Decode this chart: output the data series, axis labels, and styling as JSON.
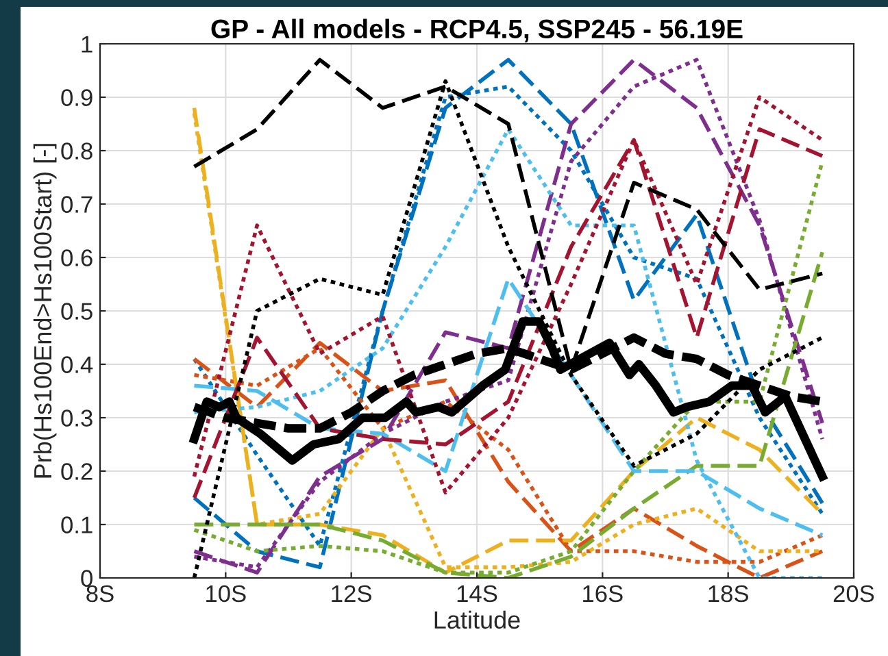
{
  "chart_data": {
    "type": "line",
    "title": "GP - All models - RCP4.5, SSP245 - 56.19E",
    "xlabel": "Latitude",
    "ylabel": "Prb(Hs100End>Hs100Start) [-]",
    "x": [
      9.5,
      10.5,
      11.5,
      12.5,
      13.5,
      14.5,
      15.5,
      16.5,
      17.5,
      18.5,
      19.5
    ],
    "xlim": [
      8,
      20
    ],
    "xticks": [
      {
        "value": 8,
        "label": "8S"
      },
      {
        "value": 10,
        "label": "10S"
      },
      {
        "value": 12,
        "label": "12S"
      },
      {
        "value": 14,
        "label": "14S"
      },
      {
        "value": 16,
        "label": "16S"
      },
      {
        "value": 18,
        "label": "18S"
      },
      {
        "value": 20,
        "label": "20S"
      }
    ],
    "ylim": [
      0,
      1
    ],
    "yticks": [
      0,
      0.1,
      0.2,
      0.3,
      0.4,
      0.5,
      0.6,
      0.7,
      0.8,
      0.9,
      1
    ],
    "grid": true,
    "legend": false,
    "marker": "none",
    "series": [
      {
        "color": "#0072bd",
        "line_style": "dashed",
        "values": [
          0.15,
          0.05,
          0.02,
          0.5,
          0.88,
          0.97,
          0.85,
          0.52,
          0.68,
          0.33,
          0.14
        ]
      },
      {
        "color": "#0072bd",
        "line_style": "dotted",
        "values": [
          0.41,
          0.23,
          0.06,
          0.5,
          0.9,
          0.92,
          0.8,
          0.6,
          0.56,
          0.3,
          0.12
        ]
      },
      {
        "color": "#d95319",
        "line_style": "dashed",
        "values": [
          0.41,
          0.32,
          0.44,
          0.35,
          0.37,
          0.18,
          0.05,
          0.13,
          0.06,
          0.0,
          0.05
        ]
      },
      {
        "color": "#d95319",
        "line_style": "dotted",
        "values": [
          0.38,
          0.36,
          0.43,
          0.28,
          0.33,
          0.24,
          0.05,
          0.05,
          0.03,
          0.03,
          0.08
        ]
      },
      {
        "color": "#edb120",
        "line_style": "dashed",
        "values": [
          0.88,
          0.1,
          0.1,
          0.08,
          0.01,
          0.07,
          0.07,
          0.2,
          0.3,
          0.24,
          0.12
        ]
      },
      {
        "color": "#edb120",
        "line_style": "dotted",
        "values": [
          0.87,
          0.1,
          0.12,
          0.28,
          0.02,
          0.02,
          0.03,
          0.1,
          0.13,
          0.05,
          0.05
        ]
      },
      {
        "color": "#7e2f8e",
        "line_style": "dashed",
        "values": [
          0.05,
          0.01,
          0.19,
          0.26,
          0.46,
          0.43,
          0.85,
          0.97,
          0.88,
          0.66,
          0.29
        ]
      },
      {
        "color": "#7e2f8e",
        "line_style": "dotted",
        "values": [
          0.04,
          0.02,
          0.18,
          0.27,
          0.33,
          0.37,
          0.78,
          0.92,
          0.97,
          0.67,
          0.26
        ]
      },
      {
        "color": "#77ac30",
        "line_style": "dashed",
        "values": [
          0.1,
          0.1,
          0.1,
          0.07,
          0.01,
          0.0,
          0.04,
          0.13,
          0.21,
          0.21,
          0.61
        ]
      },
      {
        "color": "#77ac30",
        "line_style": "dotted",
        "values": [
          0.09,
          0.05,
          0.06,
          0.05,
          0.01,
          0.01,
          0.05,
          0.2,
          0.33,
          0.33,
          0.78
        ]
      },
      {
        "color": "#4dbeee",
        "line_style": "dashed",
        "values": [
          0.36,
          0.35,
          0.28,
          0.27,
          0.2,
          0.56,
          0.38,
          0.2,
          0.2,
          0.13,
          0.08
        ]
      },
      {
        "color": "#4dbeee",
        "line_style": "dotted",
        "values": [
          0.31,
          0.32,
          0.35,
          0.43,
          0.62,
          0.84,
          0.66,
          0.66,
          0.22,
          0.0,
          0.0
        ]
      },
      {
        "color": "#a2142f",
        "line_style": "dashed",
        "values": [
          0.15,
          0.45,
          0.28,
          0.26,
          0.25,
          0.33,
          0.62,
          0.82,
          0.45,
          0.84,
          0.79
        ]
      },
      {
        "color": "#a2142f",
        "line_style": "dotted",
        "values": [
          0.19,
          0.66,
          0.42,
          0.49,
          0.16,
          0.3,
          0.55,
          0.82,
          0.55,
          0.9,
          0.82
        ]
      },
      {
        "color": "#000000",
        "line_style": "dashed",
        "values": [
          0.77,
          0.84,
          0.97,
          0.88,
          0.92,
          0.85,
          0.39,
          0.74,
          0.69,
          0.54,
          0.57
        ]
      },
      {
        "color": "#000000",
        "line_style": "dotted",
        "values": [
          0.0,
          0.5,
          0.56,
          0.53,
          0.93,
          0.62,
          0.38,
          0.21,
          0.27,
          0.39,
          0.45
        ]
      },
      {
        "color": "#000000",
        "line_style": "solid",
        "x": [
          9.5,
          9.7,
          9.9,
          10.06,
          10.17,
          10.55,
          11.06,
          11.4,
          11.8,
          12.18,
          12.54,
          12.88,
          13.03,
          13.39,
          13.6,
          14.09,
          14.45,
          14.73,
          14.99,
          15.2,
          15.33,
          15.64,
          16.11,
          16.43,
          16.58,
          16.85,
          17.13,
          17.34,
          17.7,
          18.06,
          18.38,
          18.59,
          18.91,
          19.5
        ],
        "values": [
          0.26,
          0.33,
          0.32,
          0.33,
          0.3,
          0.27,
          0.22,
          0.25,
          0.26,
          0.3,
          0.3,
          0.33,
          0.31,
          0.32,
          0.31,
          0.36,
          0.39,
          0.48,
          0.48,
          0.43,
          0.39,
          0.41,
          0.44,
          0.38,
          0.4,
          0.36,
          0.31,
          0.32,
          0.33,
          0.36,
          0.36,
          0.31,
          0.34,
          0.19
        ]
      },
      {
        "color": "#000000",
        "line_style": "dashed",
        "x": [
          9.5,
          10.0,
          10.5,
          11.0,
          11.5,
          12.0,
          12.5,
          13.0,
          13.5,
          14.0,
          14.5,
          15.0,
          15.5,
          16.0,
          16.5,
          17.0,
          17.5,
          18.0,
          18.5,
          19.0,
          19.5
        ],
        "values": [
          0.32,
          0.3,
          0.29,
          0.28,
          0.28,
          0.31,
          0.35,
          0.38,
          0.4,
          0.42,
          0.43,
          0.41,
          0.39,
          0.42,
          0.45,
          0.42,
          0.41,
          0.38,
          0.36,
          0.34,
          0.33
        ]
      }
    ]
  }
}
